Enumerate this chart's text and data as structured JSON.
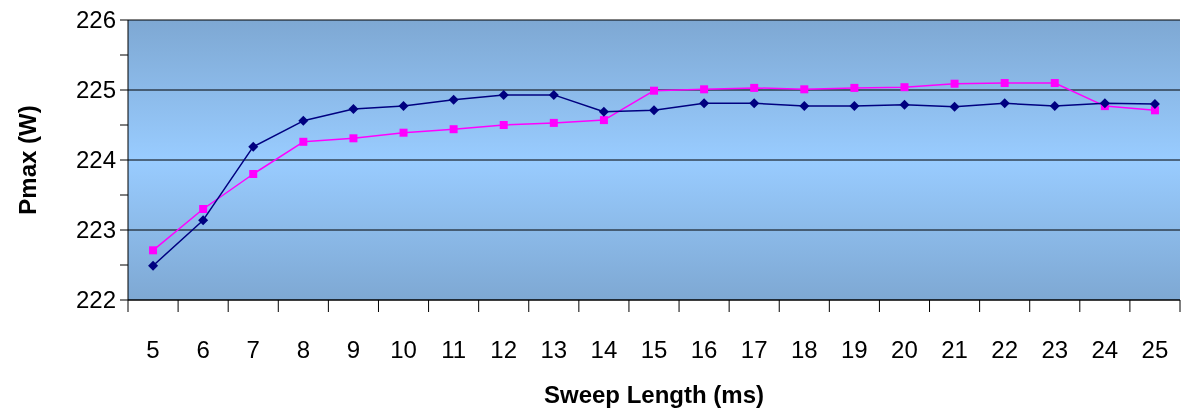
{
  "chart_data": {
    "type": "line",
    "xlabel": "Sweep Length (ms)",
    "ylabel": "Pmax (W)",
    "categories": [
      "5",
      "6",
      "7",
      "8",
      "9",
      "10",
      "11",
      "12",
      "13",
      "14",
      "15",
      "16",
      "17",
      "18",
      "19",
      "20",
      "21",
      "22",
      "23",
      "24",
      "25"
    ],
    "ylim": [
      222,
      226
    ],
    "yticks": [
      222,
      {
        "value": 222.5,
        "label": null
      },
      223,
      {
        "value": 223.5,
        "label": null
      },
      224,
      {
        "value": 224.5,
        "label": null
      },
      225,
      {
        "value": 225.5,
        "label": null
      },
      226
    ],
    "grid": "y",
    "series": [
      {
        "color": "#000080",
        "marker": "diamond",
        "values": [
          222.49,
          223.14,
          224.19,
          224.56,
          224.73,
          224.77,
          224.86,
          224.93,
          224.93,
          224.69,
          224.71,
          224.81,
          224.81,
          224.77,
          224.77,
          224.79,
          224.76,
          224.81,
          224.77,
          224.81,
          224.8
        ]
      },
      {
        "color": "#ff00ff",
        "marker": "square",
        "values": [
          222.71,
          223.3,
          223.8,
          224.26,
          224.31,
          224.39,
          224.44,
          224.5,
          224.53,
          224.57,
          224.99,
          225.01,
          225.03,
          225.01,
          225.03,
          225.04,
          225.09,
          225.1,
          225.1,
          224.77,
          224.71
        ]
      }
    ]
  }
}
